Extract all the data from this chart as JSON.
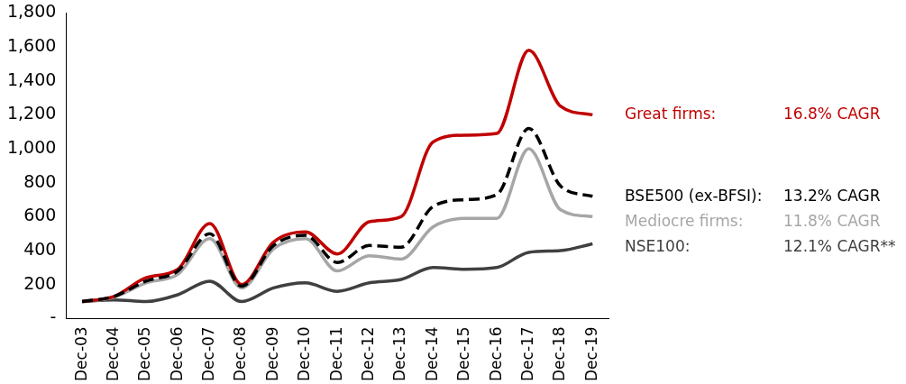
{
  "chart_data": {
    "type": "line",
    "categories": [
      "Dec-03",
      "Dec-04",
      "Dec-05",
      "Dec-06",
      "Dec-07",
      "Dec-08",
      "Dec-09",
      "Dec-10",
      "Dec-11",
      "Dec-12",
      "Dec-13",
      "Dec-14",
      "Dec-15",
      "Dec-16",
      "Dec-17",
      "Dec-18",
      "Dec-19"
    ],
    "ylim": [
      0,
      1800
    ],
    "yticks": [
      {
        "value": 0,
        "label": "-"
      },
      {
        "value": 200,
        "label": "200"
      },
      {
        "value": 400,
        "label": "400"
      },
      {
        "value": 600,
        "label": "600"
      },
      {
        "value": 800,
        "label": "800"
      },
      {
        "value": 1000,
        "label": "1,000"
      },
      {
        "value": 1200,
        "label": "1,200"
      },
      {
        "value": 1400,
        "label": "1,400"
      },
      {
        "value": 1600,
        "label": "1,600"
      },
      {
        "value": 1800,
        "label": "1,800"
      }
    ],
    "grid": false,
    "legend": "right",
    "marker": "none",
    "series": [
      {
        "name": "Great firms:",
        "color": "#c00000",
        "values": [
          100,
          130,
          240,
          290,
          560,
          200,
          450,
          510,
          380,
          570,
          600,
          1040,
          1080,
          1090,
          1580,
          1250,
          1200
        ]
      },
      {
        "name": "BSE500 (ex-BFSI):",
        "color": "#000000",
        "line_style": "dashed",
        "values": [
          100,
          130,
          220,
          280,
          500,
          190,
          430,
          490,
          330,
          430,
          420,
          660,
          700,
          730,
          1120,
          780,
          720
        ]
      },
      {
        "name": "Mediocre firms:",
        "color": "#a6a6a6",
        "values": [
          100,
          125,
          210,
          260,
          470,
          180,
          410,
          470,
          280,
          370,
          350,
          540,
          590,
          590,
          1000,
          640,
          600
        ]
      },
      {
        "name": "NSE100:",
        "color": "#404040",
        "values": [
          100,
          110,
          100,
          140,
          220,
          100,
          180,
          210,
          160,
          210,
          230,
          300,
          290,
          300,
          390,
          400,
          440
        ]
      }
    ],
    "annotations": [
      "16.8% CAGR",
      "13.2% CAGR",
      "11.8% CAGR",
      "12.1% CAGR**"
    ]
  }
}
